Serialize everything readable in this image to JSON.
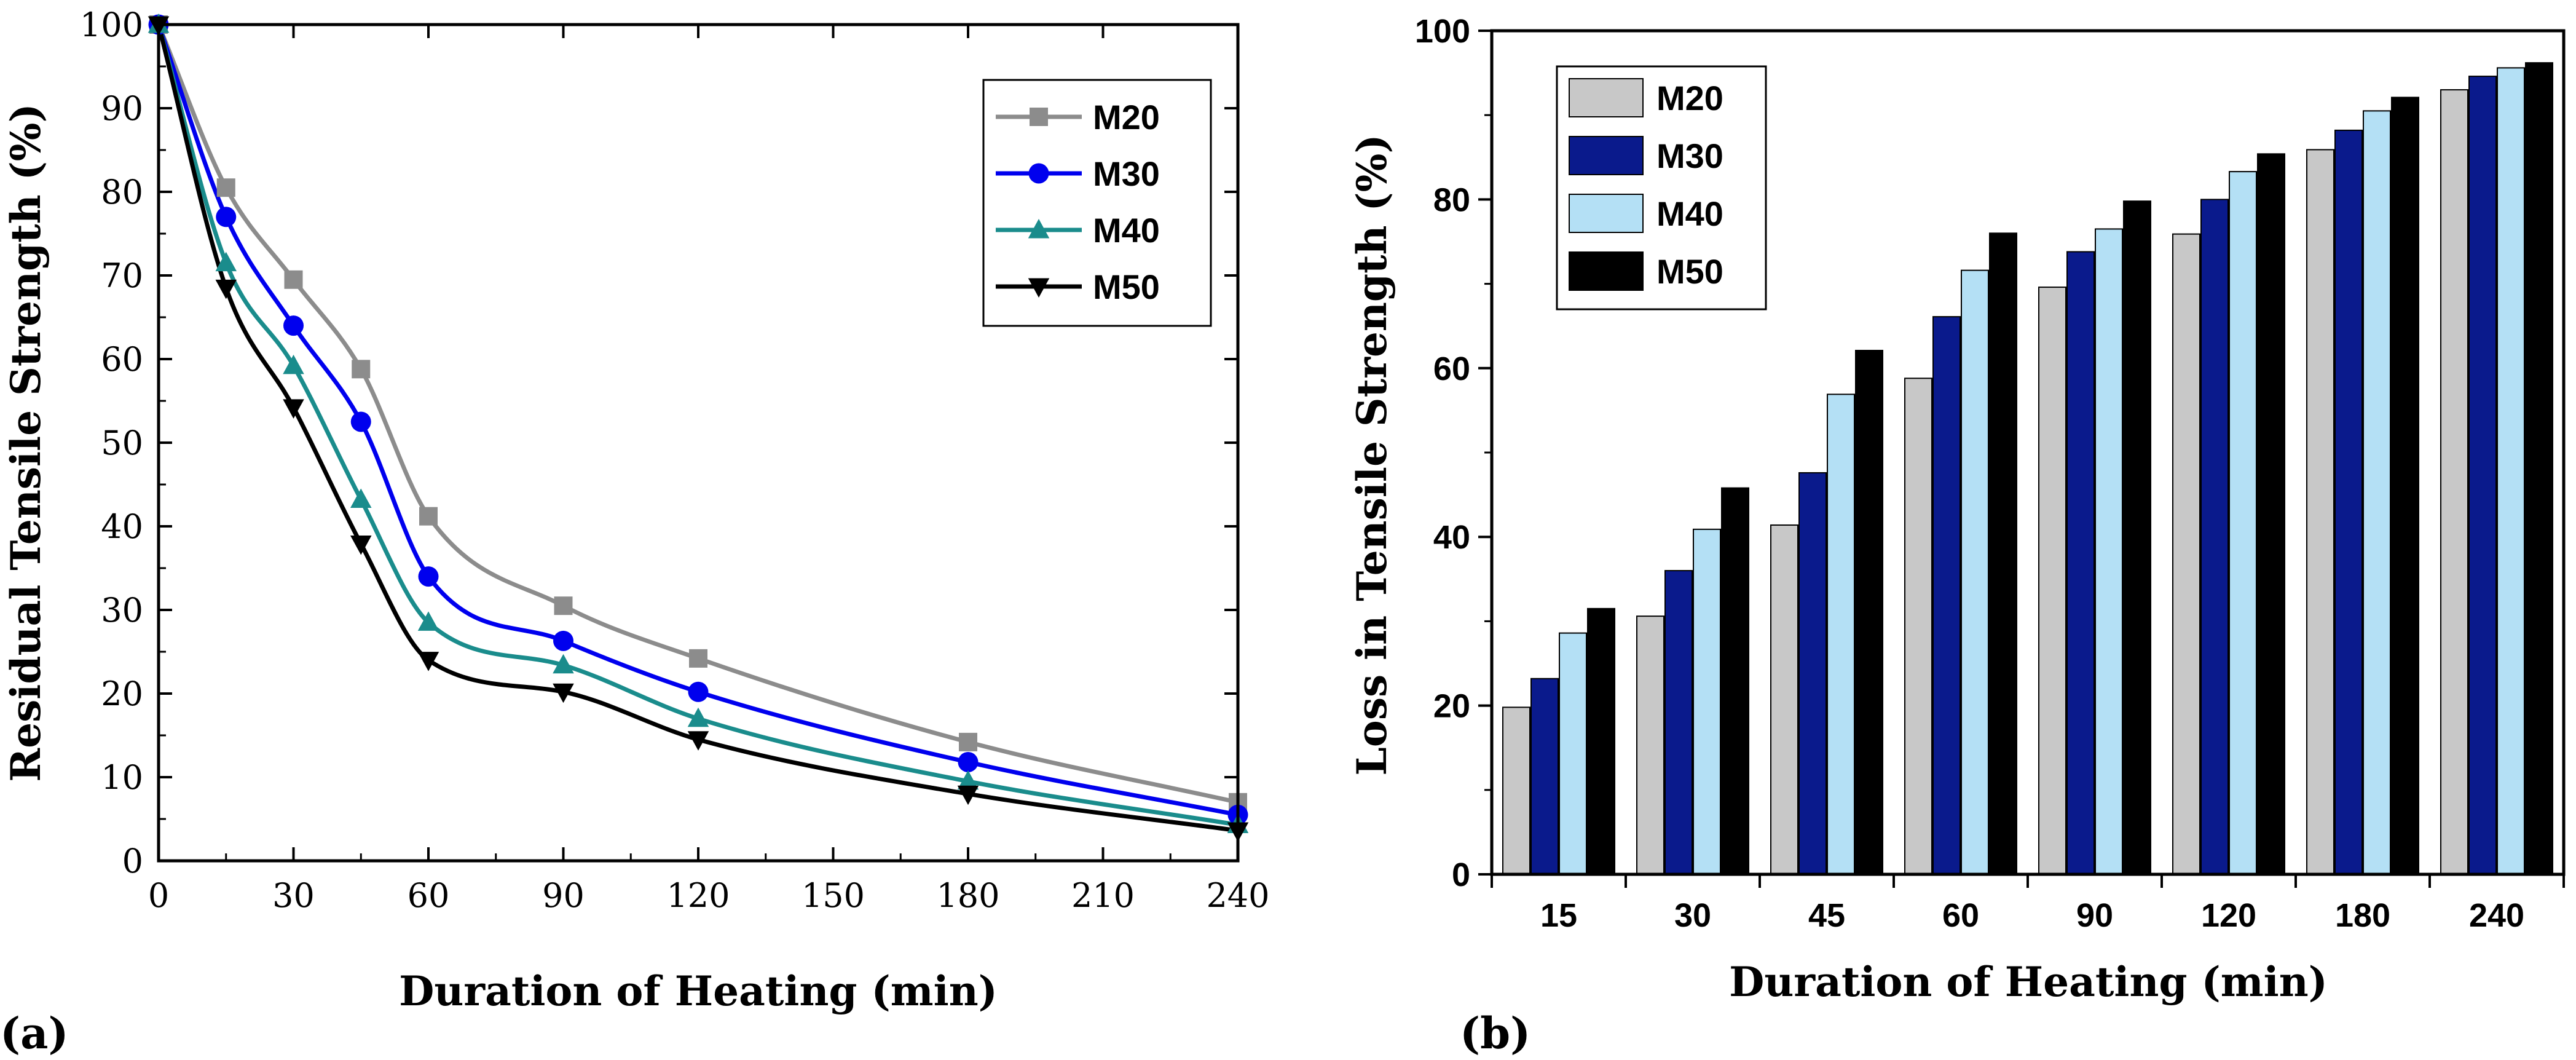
{
  "chart_data": [
    {
      "type": "line",
      "panel_label": "(a)",
      "xlabel": "Duration of Heating (min)",
      "ylabel": "Residual Tensile Strength (%)",
      "xlim": [
        0,
        240
      ],
      "ylim": [
        0,
        100
      ],
      "xticks": [
        0,
        30,
        60,
        90,
        120,
        150,
        180,
        210,
        240
      ],
      "yticks": [
        0,
        10,
        20,
        30,
        40,
        50,
        60,
        70,
        80,
        90,
        100
      ],
      "legend_position": "top-right",
      "x": [
        0,
        15,
        30,
        45,
        60,
        90,
        120,
        180,
        240
      ],
      "series": [
        {
          "name": "M20",
          "color": "#8c8c8c",
          "marker": "square",
          "values": [
            100,
            80.5,
            69.5,
            58.8,
            41.2,
            30.5,
            24.2,
            14.2,
            7.0
          ]
        },
        {
          "name": "M30",
          "color": "#0000ee",
          "marker": "circle",
          "values": [
            100,
            77.0,
            64.0,
            52.5,
            34.0,
            26.3,
            20.2,
            11.8,
            5.5
          ]
        },
        {
          "name": "M40",
          "color": "#1a8c8c",
          "marker": "triangle",
          "values": [
            100,
            71.5,
            59.2,
            43.2,
            28.5,
            23.4,
            17.0,
            9.5,
            4.3
          ]
        },
        {
          "name": "M50",
          "color": "#000000",
          "marker": "triangle-down",
          "values": [
            100,
            68.5,
            54.2,
            37.9,
            24.0,
            20.2,
            14.5,
            8.0,
            3.6
          ]
        }
      ]
    },
    {
      "type": "bar",
      "panel_label": "(b)",
      "xlabel": "Duration of Heating (min)",
      "ylabel": "Loss in Tensile Strength (%)",
      "ylim": [
        0,
        100
      ],
      "yticks": [
        0,
        20,
        40,
        60,
        80,
        100
      ],
      "legend_position": "top-left",
      "categories": [
        "15",
        "30",
        "45",
        "60",
        "90",
        "120",
        "180",
        "240"
      ],
      "series": [
        {
          "name": "M20",
          "color": "#c8c8c8",
          "values": [
            19.8,
            30.6,
            41.4,
            58.8,
            69.6,
            75.9,
            85.9,
            93.0
          ]
        },
        {
          "name": "M30",
          "color": "#0a1a8c",
          "values": [
            23.2,
            36.0,
            47.6,
            66.1,
            73.8,
            80.0,
            88.2,
            94.6
          ]
        },
        {
          "name": "M40",
          "color": "#b4e0f5",
          "values": [
            28.6,
            40.9,
            56.9,
            71.6,
            76.5,
            83.3,
            90.5,
            95.6
          ]
        },
        {
          "name": "M50",
          "color": "#000000",
          "values": [
            31.5,
            45.8,
            62.1,
            76.0,
            79.8,
            85.4,
            92.1,
            96.2
          ]
        }
      ]
    }
  ]
}
